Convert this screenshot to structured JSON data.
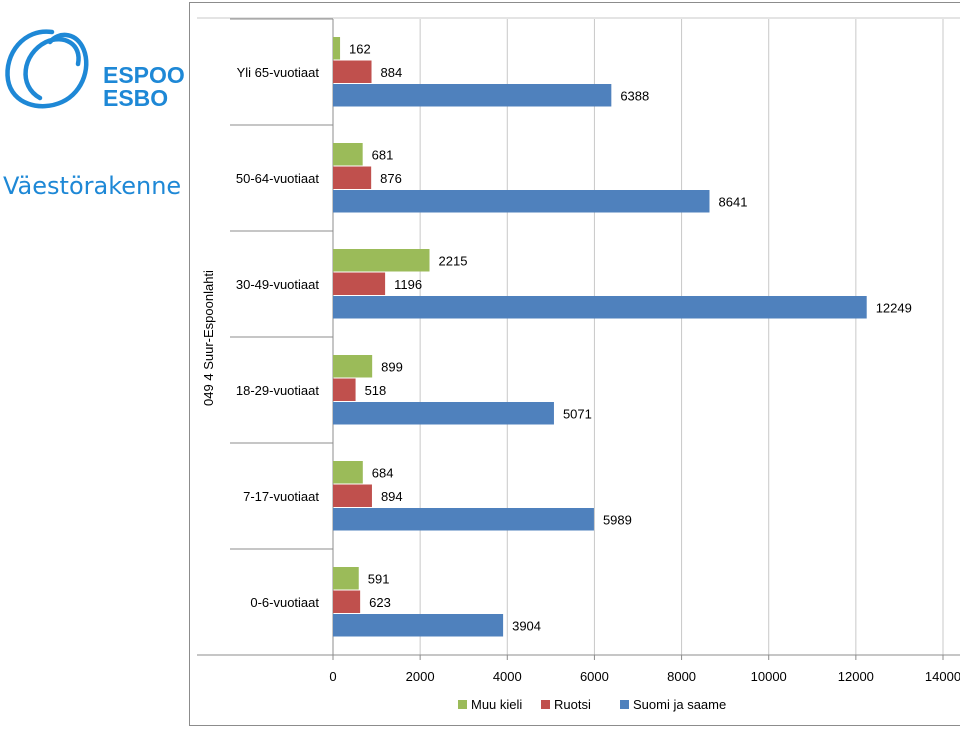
{
  "slide": {
    "title": "Väestörakenne",
    "logo": {
      "line1": "ESPOO",
      "line2": "ESBO",
      "color": "#1e88d6"
    }
  },
  "chart_data": {
    "type": "bar",
    "orientation": "horizontal",
    "group_label": "049 4 Suur-Espoonlahti",
    "categories": [
      "Yli 65-vuotiaat",
      "50-64-vuotiaat",
      "30-49-vuotiaat",
      "18-29-vuotiaat",
      "7-17-vuotiaat",
      "0-6-vuotiaat"
    ],
    "series": [
      {
        "name": "Muu kieli",
        "color": "#9bbb59",
        "values": [
          162,
          681,
          2215,
          899,
          684,
          591
        ]
      },
      {
        "name": "Ruotsi",
        "color": "#c0504d",
        "values": [
          884,
          876,
          1196,
          518,
          894,
          623
        ]
      },
      {
        "name": "Suomi ja saame",
        "color": "#4f81bd",
        "values": [
          6388,
          8641,
          12249,
          5071,
          5989,
          3904
        ]
      }
    ],
    "xlim": [
      0,
      14000
    ],
    "xticks": [
      "0",
      "2000",
      "4000",
      "6000",
      "8000",
      "10000",
      "12000",
      "14000"
    ],
    "grid": "vertical",
    "legend": "bottom"
  }
}
